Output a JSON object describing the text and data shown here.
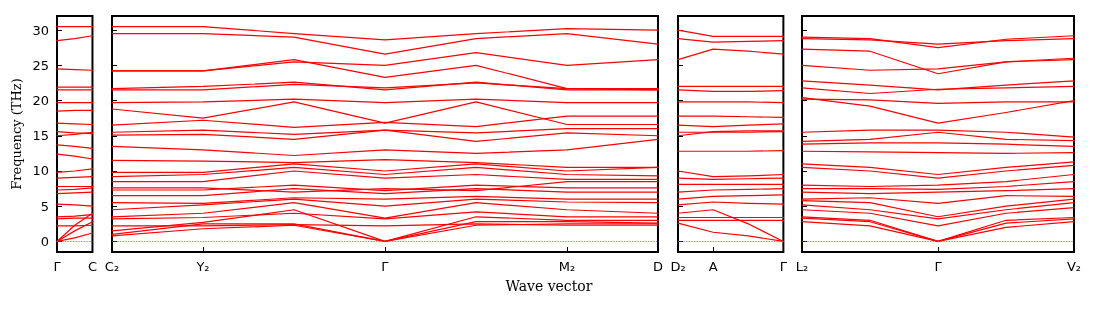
{
  "chart_data": [
    {
      "type": "line",
      "ylabel": "Frequency (THz)",
      "categories": [
        "Γ",
        null,
        "C"
      ],
      "ylim": [
        -1.5,
        32
      ],
      "yticks": [
        0,
        5,
        10,
        15,
        20,
        25,
        30
      ],
      "grid": false,
      "marker": "none",
      "line_style": "solid",
      "ref_lines": [
        {
          "axis": "y",
          "value": 0,
          "label": null,
          "color": "#5555ff",
          "line_style": "dotted"
        }
      ],
      "series": [
        {
          "color": "#ff0000",
          "values": [
            0,
            0.5,
            1.2
          ]
        },
        {
          "color": "#ff0000",
          "values": [
            0,
            1.5,
            2.8
          ]
        },
        {
          "color": "#ff0000",
          "values": [
            0,
            2.3,
            4.0
          ]
        },
        {
          "color": "#ff0000",
          "values": [
            2.2,
            2.2,
            2.3
          ]
        },
        {
          "color": "#ff0000",
          "values": [
            3.2,
            3.3,
            3.3
          ]
        },
        {
          "color": "#ff0000",
          "values": [
            3.5,
            3.6,
            3.8
          ]
        },
        {
          "color": "#ff0000",
          "values": [
            5.3,
            5.2,
            5.0
          ]
        },
        {
          "color": "#ff0000",
          "values": [
            6.8,
            6.9,
            7.0
          ]
        },
        {
          "color": "#ff0000",
          "values": [
            7.3,
            7.4,
            7.6
          ]
        },
        {
          "color": "#ff0000",
          "values": [
            7.8,
            7.8,
            7.8
          ]
        },
        {
          "color": "#ff0000",
          "values": [
            9.0,
            9.1,
            9.2
          ]
        },
        {
          "color": "#ff0000",
          "values": [
            9.8,
            10.0,
            10.3
          ]
        },
        {
          "color": "#ff0000",
          "values": [
            12.4,
            12.1,
            11.7
          ]
        },
        {
          "color": "#ff0000",
          "values": [
            13.7,
            13.5,
            13.2
          ]
        },
        {
          "color": "#ff0000",
          "values": [
            15.0,
            15.2,
            15.5
          ]
        },
        {
          "color": "#ff0000",
          "values": [
            15.6,
            15.4,
            15.3
          ]
        },
        {
          "color": "#ff0000",
          "values": [
            16.8,
            16.7,
            16.6
          ]
        },
        {
          "color": "#ff0000",
          "values": [
            18.5,
            18.6,
            18.6
          ]
        },
        {
          "color": "#ff0000",
          "values": [
            19.7,
            19.7,
            19.7
          ]
        },
        {
          "color": "#ff0000",
          "values": [
            21.5,
            21.5,
            21.5
          ]
        },
        {
          "color": "#ff0000",
          "values": [
            21.9,
            21.9,
            21.9
          ]
        },
        {
          "color": "#ff0000",
          "values": [
            24.5,
            24.4,
            24.3
          ]
        },
        {
          "color": "#ff0000",
          "values": [
            28.5,
            28.8,
            29.2
          ]
        },
        {
          "color": "#ff0000",
          "values": [
            30.5,
            30.5,
            30.5
          ]
        }
      ]
    },
    {
      "type": "line",
      "xlabel": "Wave vector",
      "categories": [
        "C₂",
        "Y₂",
        null,
        "Γ",
        null,
        "M₂",
        "D"
      ],
      "ylim": [
        -1.5,
        32
      ],
      "yticks": [
        {
          "value": 0,
          "label": null
        },
        {
          "value": 5,
          "label": null
        },
        {
          "value": 10,
          "label": null
        },
        {
          "value": 15,
          "label": null
        },
        {
          "value": 20,
          "label": null
        },
        {
          "value": 25,
          "label": null
        },
        {
          "value": 30,
          "label": null
        }
      ],
      "tick_labels": "x",
      "grid": false,
      "marker": "none",
      "line_style": "solid",
      "ref_lines": [
        {
          "axis": "y",
          "value": 0,
          "label": null,
          "color": "#5555ff",
          "line_style": "dotted"
        }
      ],
      "series": [
        {
          "color": "#ff0000",
          "values": [
            0.8,
            1.8,
            2.3,
            0,
            2.3,
            2.5,
            2.5
          ]
        },
        {
          "color": "#ff0000",
          "values": [
            1.0,
            2.5,
            2.5,
            0,
            2.8,
            2.8,
            2.6
          ]
        },
        {
          "color": "#ff0000",
          "values": [
            1.5,
            2.7,
            4.5,
            0,
            3.5,
            3.0,
            3.0
          ]
        },
        {
          "color": "#ff0000",
          "values": [
            2.2,
            2.2,
            2.4,
            2.2,
            2.5,
            2.3,
            2.3
          ]
        },
        {
          "color": "#ff0000",
          "values": [
            3.2,
            3.4,
            4.0,
            3.2,
            4.2,
            3.5,
            3.5
          ]
        },
        {
          "color": "#ff0000",
          "values": [
            3.5,
            4.0,
            5.5,
            3.3,
            5.5,
            4.5,
            4.0
          ]
        },
        {
          "color": "#ff0000",
          "values": [
            4.5,
            5.2,
            6.0,
            5.0,
            6.0,
            5.6,
            5.5
          ]
        },
        {
          "color": "#ff0000",
          "values": [
            5.5,
            5.4,
            6.2,
            6.0,
            6.4,
            6.0,
            6.0
          ]
        },
        {
          "color": "#ff0000",
          "values": [
            6.5,
            6.5,
            7.5,
            6.8,
            7.5,
            7.0,
            7.0
          ]
        },
        {
          "color": "#ff0000",
          "values": [
            7.3,
            7.3,
            8.0,
            7.2,
            8.0,
            7.6,
            7.6
          ]
        },
        {
          "color": "#ff0000",
          "values": [
            7.6,
            7.6,
            7.0,
            7.5,
            7.2,
            8.5,
            8.5
          ]
        },
        {
          "color": "#ff0000",
          "values": [
            8.5,
            8.5,
            10.0,
            9.0,
            9.5,
            8.8,
            8.8
          ]
        },
        {
          "color": "#ff0000",
          "values": [
            9.2,
            9.5,
            10.5,
            9.5,
            10.5,
            9.5,
            9.3
          ]
        },
        {
          "color": "#ff0000",
          "values": [
            9.8,
            9.8,
            11.0,
            10.0,
            11.0,
            10.0,
            10.5
          ]
        },
        {
          "color": "#ff0000",
          "values": [
            11.5,
            11.4,
            11.2,
            11.6,
            11.2,
            10.5,
            10.5
          ]
        },
        {
          "color": "#ff0000",
          "values": [
            13.5,
            13.0,
            12.2,
            13.0,
            12.5,
            13.0,
            14.5
          ]
        },
        {
          "color": "#ff0000",
          "values": [
            15.1,
            15.2,
            14.5,
            15.8,
            15.4,
            16.0,
            16.0
          ]
        },
        {
          "color": "#ff0000",
          "values": [
            15.5,
            15.8,
            15.2,
            15.8,
            14.2,
            15.4,
            15.0
          ]
        },
        {
          "color": "#ff0000",
          "values": [
            16.5,
            17.2,
            16.2,
            16.9,
            16.3,
            17.8,
            17.8
          ]
        },
        {
          "color": "#ff0000",
          "values": [
            18.8,
            17.5,
            19.8,
            16.8,
            19.8,
            16.6,
            16.6
          ]
        },
        {
          "color": "#ff0000",
          "values": [
            19.7,
            19.8,
            20.2,
            19.7,
            20.2,
            19.7,
            19.7
          ]
        },
        {
          "color": "#ff0000",
          "values": [
            21.5,
            21.5,
            22.3,
            21.8,
            22.5,
            21.7,
            21.7
          ]
        },
        {
          "color": "#ff0000",
          "values": [
            21.7,
            22.0,
            22.6,
            21.5,
            22.6,
            21.5,
            21.5
          ]
        },
        {
          "color": "#ff0000",
          "values": [
            24.2,
            24.2,
            25.5,
            25.0,
            26.8,
            25.0,
            25.8
          ]
        },
        {
          "color": "#ff0000",
          "values": [
            24.2,
            24.2,
            25.8,
            23.3,
            25.0,
            21.7,
            21.5
          ]
        },
        {
          "color": "#ff0000",
          "values": [
            29.5,
            29.5,
            29.0,
            26.6,
            28.8,
            29.5,
            28.0
          ]
        },
        {
          "color": "#ff0000",
          "values": [
            30.5,
            30.5,
            29.5,
            28.6,
            29.5,
            30.2,
            30.0
          ]
        }
      ]
    },
    {
      "type": "line",
      "categories": [
        "D₂",
        "A",
        null,
        "Γ"
      ],
      "ylim": [
        -1.5,
        32
      ],
      "yticks": [
        {
          "value": 0,
          "label": null
        },
        {
          "value": 5,
          "label": null
        },
        {
          "value": 10,
          "label": null
        },
        {
          "value": 15,
          "label": null
        },
        {
          "value": 20,
          "label": null
        },
        {
          "value": 25,
          "label": null
        },
        {
          "value": 30,
          "label": null
        }
      ],
      "tick_labels": "x",
      "grid": false,
      "marker": "none",
      "line_style": "solid",
      "ref_lines": [
        {
          "axis": "y",
          "value": 0,
          "label": null,
          "color": "#5555ff",
          "line_style": "dotted"
        }
      ],
      "series": [
        {
          "color": "#ff0000",
          "values": [
            2.6,
            1.3,
            0.8,
            0
          ]
        },
        {
          "color": "#ff0000",
          "values": [
            4.0,
            4.5,
            2.5,
            0
          ]
        },
        {
          "color": "#ff0000",
          "values": [
            3.0,
            3.0,
            3.0,
            3.0
          ]
        },
        {
          "color": "#ff0000",
          "values": [
            3.4,
            3.4,
            3.4,
            3.4
          ]
        },
        {
          "color": "#ff0000",
          "values": [
            5.2,
            5.6,
            5.4,
            5.3
          ]
        },
        {
          "color": "#ff0000",
          "values": [
            6.0,
            6.4,
            6.5,
            6.6
          ]
        },
        {
          "color": "#ff0000",
          "values": [
            7.0,
            7.3,
            7.4,
            7.5
          ]
        },
        {
          "color": "#ff0000",
          "values": [
            8.1,
            8.1,
            8.1,
            8.1
          ]
        },
        {
          "color": "#ff0000",
          "values": [
            9.0,
            8.8,
            8.9,
            9.0
          ]
        },
        {
          "color": "#ff0000",
          "values": [
            10.0,
            9.2,
            9.3,
            9.5
          ]
        },
        {
          "color": "#ff0000",
          "values": [
            12.8,
            12.8,
            12.8,
            12.9
          ]
        },
        {
          "color": "#ff0000",
          "values": [
            15.0,
            15.6,
            15.7,
            15.7
          ]
        },
        {
          "color": "#ff0000",
          "values": [
            15.5,
            15.5,
            15.5,
            15.6
          ]
        },
        {
          "color": "#ff0000",
          "values": [
            16.5,
            16.3,
            16.5,
            16.7
          ]
        },
        {
          "color": "#ff0000",
          "values": [
            17.8,
            17.8,
            17.7,
            17.6
          ]
        },
        {
          "color": "#ff0000",
          "values": [
            19.8,
            19.8,
            19.8,
            19.7
          ]
        },
        {
          "color": "#ff0000",
          "values": [
            21.5,
            21.3,
            21.3,
            21.4
          ]
        },
        {
          "color": "#ff0000",
          "values": [
            22.0,
            22.0,
            22.0,
            22.0
          ]
        },
        {
          "color": "#ff0000",
          "values": [
            25.8,
            27.3,
            27.0,
            26.6
          ]
        },
        {
          "color": "#ff0000",
          "values": [
            28.8,
            28.3,
            28.4,
            28.5
          ]
        },
        {
          "color": "#ff0000",
          "values": [
            30.0,
            29.1,
            29.1,
            29.1
          ]
        }
      ]
    },
    {
      "type": "line",
      "categories": [
        "L₂",
        null,
        "Γ",
        null,
        "V₂"
      ],
      "ylim": [
        -1.5,
        32
      ],
      "yticks": [
        {
          "value": 0,
          "label": null
        },
        {
          "value": 5,
          "label": null
        },
        {
          "value": 10,
          "label": null
        },
        {
          "value": 15,
          "label": null
        },
        {
          "value": 20,
          "label": null
        },
        {
          "value": 25,
          "label": null
        },
        {
          "value": 30,
          "label": null
        }
      ],
      "tick_labels": "x",
      "grid": false,
      "marker": "none",
      "line_style": "solid",
      "ref_lines": [
        {
          "axis": "y",
          "value": 0,
          "label": null,
          "color": "#5555ff",
          "line_style": "dotted"
        }
      ],
      "series": [
        {
          "color": "#ff0000",
          "values": [
            2.8,
            2.2,
            0,
            2.0,
            2.8
          ]
        },
        {
          "color": "#ff0000",
          "values": [
            3.3,
            2.8,
            0,
            2.6,
            3.2
          ]
        },
        {
          "color": "#ff0000",
          "values": [
            3.5,
            3.0,
            0,
            3.0,
            3.4
          ]
        },
        {
          "color": "#ff0000",
          "values": [
            4.5,
            4.0,
            2.2,
            4.0,
            4.8
          ]
        },
        {
          "color": "#ff0000",
          "values": [
            5.2,
            4.5,
            3.2,
            4.5,
            5.5
          ]
        },
        {
          "color": "#ff0000",
          "values": [
            5.8,
            5.5,
            3.5,
            5.0,
            6.0
          ]
        },
        {
          "color": "#ff0000",
          "values": [
            6.0,
            6.2,
            5.4,
            6.5,
            6.4
          ]
        },
        {
          "color": "#ff0000",
          "values": [
            7.0,
            6.8,
            7.0,
            7.2,
            7.5
          ]
        },
        {
          "color": "#ff0000",
          "values": [
            7.5,
            7.5,
            7.4,
            7.8,
            8.5
          ]
        },
        {
          "color": "#ff0000",
          "values": [
            8.0,
            7.8,
            8.0,
            8.5,
            9.5
          ]
        },
        {
          "color": "#ff0000",
          "values": [
            10.5,
            10.0,
            9.0,
            10.0,
            10.8
          ]
        },
        {
          "color": "#ff0000",
          "values": [
            11.0,
            10.5,
            9.5,
            10.5,
            11.3
          ]
        },
        {
          "color": "#ff0000",
          "values": [
            12.8,
            12.7,
            12.6,
            12.5,
            12.6
          ]
        },
        {
          "color": "#ff0000",
          "values": [
            13.8,
            14.0,
            14.0,
            13.8,
            13.5
          ]
        },
        {
          "color": "#ff0000",
          "values": [
            14.2,
            14.5,
            15.5,
            14.5,
            14.3
          ]
        },
        {
          "color": "#ff0000",
          "values": [
            15.5,
            15.8,
            15.8,
            15.5,
            14.8
          ]
        },
        {
          "color": "#ff0000",
          "values": [
            20.4,
            19.2,
            16.8,
            18.3,
            20.0
          ]
        },
        {
          "color": "#ff0000",
          "values": [
            20.2,
            20.1,
            19.6,
            19.8,
            19.8
          ]
        },
        {
          "color": "#ff0000",
          "values": [
            21.8,
            21.0,
            21.6,
            21.8,
            22.0
          ]
        },
        {
          "color": "#ff0000",
          "values": [
            22.8,
            22.2,
            21.5,
            22.2,
            22.8
          ]
        },
        {
          "color": "#ff0000",
          "values": [
            25.0,
            24.3,
            24.5,
            25.5,
            26.0
          ]
        },
        {
          "color": "#ff0000",
          "values": [
            27.3,
            27.0,
            23.8,
            25.5,
            25.8
          ]
        },
        {
          "color": "#ff0000",
          "values": [
            28.8,
            28.6,
            28.0,
            28.5,
            28.8
          ]
        },
        {
          "color": "#ff0000",
          "values": [
            29.0,
            28.8,
            27.5,
            28.7,
            29.2
          ]
        }
      ]
    }
  ]
}
